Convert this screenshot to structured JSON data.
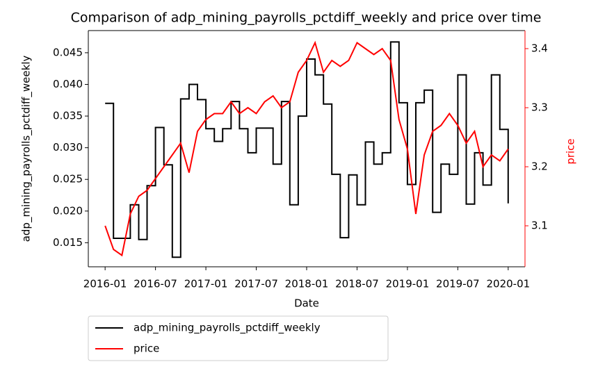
{
  "chart_data": {
    "type": "line",
    "title": "Comparison of adp_mining_payrolls_pctdiff_weekly and price over time",
    "x_label": "Date",
    "y_label": "adp_mining_payrolls_pctdiff_weekly",
    "y2_label": "price",
    "x": [
      "2016-01",
      "2016-02",
      "2016-03",
      "2016-04",
      "2016-05",
      "2016-06",
      "2016-07",
      "2016-08",
      "2016-09",
      "2016-10",
      "2016-11",
      "2016-12",
      "2017-01",
      "2017-02",
      "2017-03",
      "2017-04",
      "2017-05",
      "2017-06",
      "2017-07",
      "2017-08",
      "2017-09",
      "2017-10",
      "2017-11",
      "2017-12",
      "2018-01",
      "2018-02",
      "2018-03",
      "2018-04",
      "2018-05",
      "2018-06",
      "2018-07",
      "2018-08",
      "2018-09",
      "2018-10",
      "2018-11",
      "2018-12",
      "2019-01",
      "2019-02",
      "2019-03",
      "2019-04",
      "2019-05",
      "2019-06",
      "2019-07",
      "2019-08",
      "2019-09",
      "2019-10",
      "2019-11",
      "2019-12",
      "2020-01"
    ],
    "series": [
      {
        "name": "adp_mining_payrolls_pctdiff_weekly",
        "color": "#000000",
        "step": true,
        "values": [
          0.037,
          0.0157,
          0.0157,
          0.021,
          0.0155,
          0.024,
          0.0332,
          0.0273,
          0.0127,
          0.0377,
          0.04,
          0.0376,
          0.033,
          0.031,
          0.033,
          0.0373,
          0.033,
          0.0292,
          0.0331,
          0.0331,
          0.0274,
          0.0373,
          0.021,
          0.035,
          0.044,
          0.0415,
          0.0369,
          0.0258,
          0.0158,
          0.0257,
          0.021,
          0.0309,
          0.0274,
          0.0292,
          0.0467,
          0.0371,
          0.0242,
          0.0371,
          0.0391,
          0.0198,
          0.0274,
          0.0258,
          0.0415,
          0.0211,
          0.0292,
          0.0241,
          0.0415,
          0.0329,
          0.0212
        ]
      },
      {
        "name": "price",
        "color": "#ff0000",
        "axis": "y2",
        "values": [
          3.1,
          3.06,
          3.05,
          3.12,
          3.15,
          3.16,
          3.18,
          3.2,
          3.22,
          3.24,
          3.19,
          3.26,
          3.28,
          3.29,
          3.29,
          3.31,
          3.29,
          3.3,
          3.29,
          3.31,
          3.32,
          3.3,
          3.31,
          3.36,
          3.38,
          3.41,
          3.36,
          3.38,
          3.37,
          3.38,
          3.41,
          3.4,
          3.39,
          3.4,
          3.38,
          3.28,
          3.23,
          3.12,
          3.22,
          3.26,
          3.27,
          3.29,
          3.27,
          3.24,
          3.26,
          3.2,
          3.22,
          3.21,
          3.23
        ]
      }
    ],
    "xlim": [
      "2015-11",
      "2020-03"
    ],
    "xticks": [
      "2016-01",
      "2016-07",
      "2017-01",
      "2017-07",
      "2018-01",
      "2018-07",
      "2019-01",
      "2019-07",
      "2020-01"
    ],
    "ylim": [
      0.0112,
      0.0485
    ],
    "yticks": [
      0.015,
      {
        "value": 0.02,
        "label": "0.020"
      },
      0.025,
      {
        "value": 0.03,
        "label": "0.030"
      },
      0.035,
      {
        "value": 0.04,
        "label": "0.040"
      },
      0.045
    ],
    "y2lim": [
      3.0306,
      3.4306
    ],
    "y2ticks": [
      3.1,
      3.2,
      3.3,
      3.4
    ],
    "legend": "bottom-left"
  }
}
